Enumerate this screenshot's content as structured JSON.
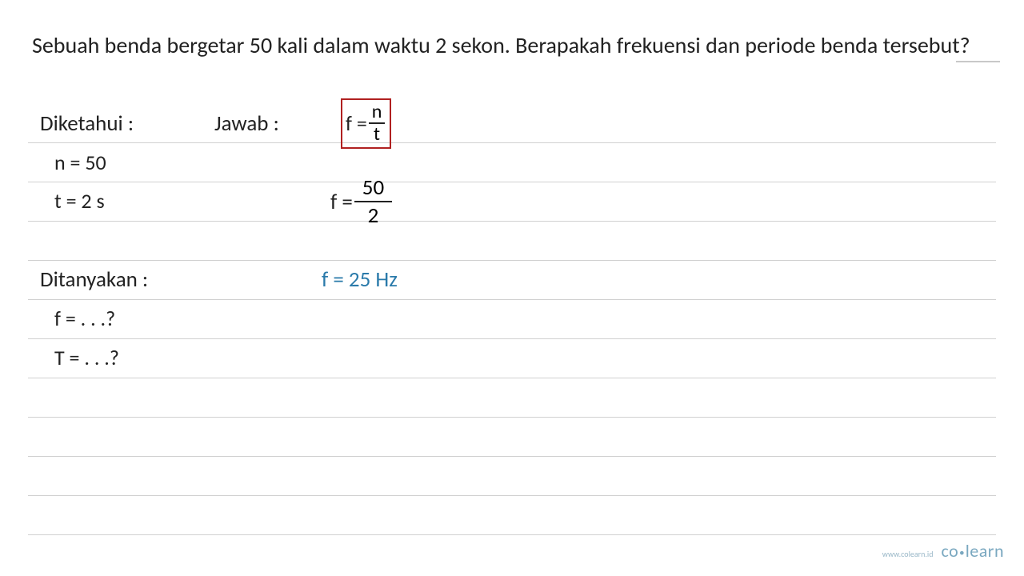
{
  "question": "Sebuah benda bergetar 50 kali dalam waktu 2 sekon. Berapakah frekuensi dan periode benda tersebut?",
  "diketahui": {
    "label": "Diketahui :",
    "n": "n = 50",
    "t": "t = 2 s"
  },
  "jawab": {
    "label": "Jawab :",
    "formula_lhs": "f =",
    "formula_num": "n",
    "formula_den": "t",
    "calc_lhs": "f =",
    "calc_num": "50",
    "calc_den": "2",
    "result": "f = 25 Hz"
  },
  "ditanyakan": {
    "label": "Ditanyakan :",
    "f": "f = . . .?",
    "T": "T = . . .?"
  },
  "footer": {
    "url": "www.colearn.id",
    "logo_co": "co",
    "logo_learn": "learn"
  },
  "colors": {
    "text": "#222222",
    "result": "#2a7aaa",
    "box_border": "#b02020",
    "line": "#d0d0d0",
    "footer": "#7aa8c0"
  }
}
